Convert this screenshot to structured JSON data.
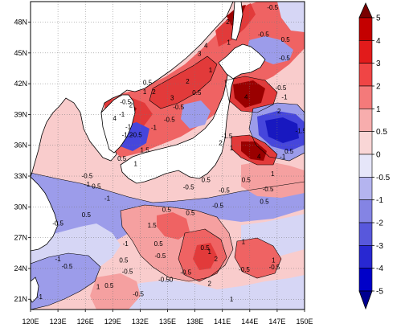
{
  "map": {
    "lon_ticks": [
      "120E",
      "123E",
      "126E",
      "129E",
      "132E",
      "135E",
      "138E",
      "141E",
      "144E",
      "147E",
      "150E"
    ],
    "lat_ticks": [
      "21N",
      "24N",
      "27N",
      "30N",
      "33N",
      "36N",
      "39N",
      "42N",
      "45N",
      "48N"
    ],
    "lon_range": [
      120,
      150
    ],
    "lat_range": [
      20,
      50
    ],
    "grid": "dotted",
    "land_color": "#ffffff",
    "coastline_color": "#000000",
    "contour_labels": [
      {
        "text": "-0.5",
        "lon": 146.5,
        "lat": 49.2
      },
      {
        "text": "2",
        "lon": 141.6,
        "lat": 47.8
      },
      {
        "text": "3",
        "lon": 138.5,
        "lat": 44.7
      },
      {
        "text": "4",
        "lon": 139.2,
        "lat": 45.5
      },
      {
        "text": "1",
        "lon": 141.7,
        "lat": 45.8
      },
      {
        "text": "-0.5",
        "lon": 145.5,
        "lat": 46.6
      },
      {
        "text": "0.5",
        "lon": 147.9,
        "lat": 46.1
      },
      {
        "text": "-0.5",
        "lon": 147.8,
        "lat": 44.3
      },
      {
        "text": "1",
        "lon": 139.7,
        "lat": 43.1
      },
      {
        "text": "2",
        "lon": 137.2,
        "lat": 42.0
      },
      {
        "text": "0.5",
        "lon": 132.8,
        "lat": 41.9
      },
      {
        "text": "2",
        "lon": 133.5,
        "lat": 41.0
      },
      {
        "text": "1",
        "lon": 132.5,
        "lat": 41.0
      },
      {
        "text": "0.5",
        "lon": 138.2,
        "lat": 40.9
      },
      {
        "text": "4",
        "lon": 143.6,
        "lat": 40.5
      },
      {
        "text": "-0.5",
        "lon": 147.4,
        "lat": 41.4
      },
      {
        "text": "-1",
        "lon": 147.8,
        "lat": 40.5
      },
      {
        "text": "2",
        "lon": 147.2,
        "lat": 39.1
      },
      {
        "text": "-0.5",
        "lon": 130.4,
        "lat": 40.0
      },
      {
        "text": "2",
        "lon": 131.0,
        "lat": 39.7
      },
      {
        "text": "3",
        "lon": 135.5,
        "lat": 40.4
      },
      {
        "text": "-0.5",
        "lon": 136.2,
        "lat": 39.5
      },
      {
        "text": "-0.5",
        "lon": 135.2,
        "lat": 38.3
      },
      {
        "text": "4",
        "lon": 129.2,
        "lat": 38.4
      },
      {
        "text": "-1",
        "lon": 130.0,
        "lat": 38.8
      },
      {
        "text": "-1",
        "lon": 133.5,
        "lat": 37.5
      },
      {
        "text": "-1",
        "lon": 130.7,
        "lat": 37.6
      },
      {
        "text": "-1.2",
        "lon": 130.6,
        "lat": 36.8
      },
      {
        "text": "-0.5",
        "lon": 131.6,
        "lat": 36.8
      },
      {
        "text": "1.5",
        "lon": 132.5,
        "lat": 35.3
      },
      {
        "text": "0.5",
        "lon": 130.0,
        "lat": 34.5
      },
      {
        "text": "1",
        "lon": 131.5,
        "lat": 34.0
      },
      {
        "text": "-1.5",
        "lon": 141.5,
        "lat": 36.7
      },
      {
        "text": "2",
        "lon": 140.8,
        "lat": 36.0
      },
      {
        "text": "1",
        "lon": 142.0,
        "lat": 35.5
      },
      {
        "text": "0.5",
        "lon": 148.3,
        "lat": 35.2
      },
      {
        "text": "4",
        "lon": 145.0,
        "lat": 34.7
      },
      {
        "text": "-1",
        "lon": 147.6,
        "lat": 34.7
      },
      {
        "text": "-1.5",
        "lon": 149.6,
        "lat": 37.2
      },
      {
        "text": "-0.5",
        "lon": 126.2,
        "lat": 32.8
      },
      {
        "text": "-1",
        "lon": 126.2,
        "lat": 32.0
      },
      {
        "text": "0.5",
        "lon": 127.2,
        "lat": 31.8
      },
      {
        "text": "-1",
        "lon": 128.4,
        "lat": 30.6
      },
      {
        "text": "-0.5",
        "lon": 137.3,
        "lat": 31.7
      },
      {
        "text": "0.5",
        "lon": 139.2,
        "lat": 32.4
      },
      {
        "text": "0.5",
        "lon": 143.6,
        "lat": 32.4
      },
      {
        "text": "1",
        "lon": 146.5,
        "lat": 33.0
      },
      {
        "text": "-0.5",
        "lon": 146.0,
        "lat": 31.5
      },
      {
        "text": "-0.5",
        "lon": 141.2,
        "lat": 31.4
      },
      {
        "text": "0.5",
        "lon": 145.6,
        "lat": 30.3
      },
      {
        "text": "-0.5",
        "lon": 140.5,
        "lat": 29.9
      },
      {
        "text": "0.5",
        "lon": 134.9,
        "lat": 29.5
      },
      {
        "text": "0.5",
        "lon": 137.5,
        "lat": 29.2
      },
      {
        "text": "1.5",
        "lon": 133.3,
        "lat": 28.0
      },
      {
        "text": "0.5",
        "lon": 126.1,
        "lat": 29.0
      },
      {
        "text": "-0.5",
        "lon": 123.0,
        "lat": 28.2
      },
      {
        "text": "0.5",
        "lon": 134.0,
        "lat": 26.2
      },
      {
        "text": "0.5",
        "lon": 139.1,
        "lat": 25.8
      },
      {
        "text": "1",
        "lon": 143.3,
        "lat": 26.4
      },
      {
        "text": "1",
        "lon": 139.6,
        "lat": 25.4
      },
      {
        "text": "2",
        "lon": 140.3,
        "lat": 24.7
      },
      {
        "text": "-0.5",
        "lon": 134.2,
        "lat": 25.0
      },
      {
        "text": "0.5",
        "lon": 130.2,
        "lat": 24.6
      },
      {
        "text": "-1",
        "lon": 130.4,
        "lat": 26.2
      },
      {
        "text": "-1",
        "lon": 123.0,
        "lat": 24.7
      },
      {
        "text": "-0.5",
        "lon": 124.0,
        "lat": 24.0
      },
      {
        "text": "-0.5",
        "lon": 130.6,
        "lat": 23.5
      },
      {
        "text": "-0.50",
        "lon": 134.8,
        "lat": 22.7
      },
      {
        "text": "-0.5",
        "lon": 137.0,
        "lat": 23.4
      },
      {
        "text": "-0.5",
        "lon": 143.4,
        "lat": 23.7
      },
      {
        "text": "-0.5",
        "lon": 146.7,
        "lat": 23.9
      },
      {
        "text": "1",
        "lon": 146.6,
        "lat": 24.6
      },
      {
        "text": "1",
        "lon": 127.4,
        "lat": 22.0
      },
      {
        "text": "0.5",
        "lon": 128.6,
        "lat": 22.1
      },
      {
        "text": "-1",
        "lon": 121.0,
        "lat": 21.0
      },
      {
        "text": "-0.5",
        "lon": 131.8,
        "lat": 21.3
      },
      {
        "text": "2",
        "lon": 139.6,
        "lat": 22.3
      },
      {
        "text": "1",
        "lon": 142.0,
        "lat": 20.8
      }
    ]
  },
  "colorbar": {
    "labels": [
      "5",
      "4",
      "3",
      "2",
      "1",
      "0.5",
      "0",
      "-0.5",
      "-1",
      "-2",
      "-3",
      "-4",
      "-5"
    ],
    "colors": [
      "#7a0000",
      "#c40000",
      "#e21b1b",
      "#f04545",
      "#f47a7a",
      "#f7adad",
      "#f9d6d6",
      "#e6e6f9",
      "#b4b4ef",
      "#8484e4",
      "#5858dc",
      "#2828d2",
      "#0000c8",
      "#000090"
    ]
  },
  "field_colors": {
    "deep_red": "#9a0000",
    "red": "#e23a3a",
    "mid_red": "#ef6363",
    "light_red": "#f5a0a0",
    "pale_red": "#f9cccc",
    "pale_blue": "#d6d6f5",
    "light_blue": "#9c9cea",
    "blue": "#4646dc",
    "deep_blue": "#1818c0"
  }
}
